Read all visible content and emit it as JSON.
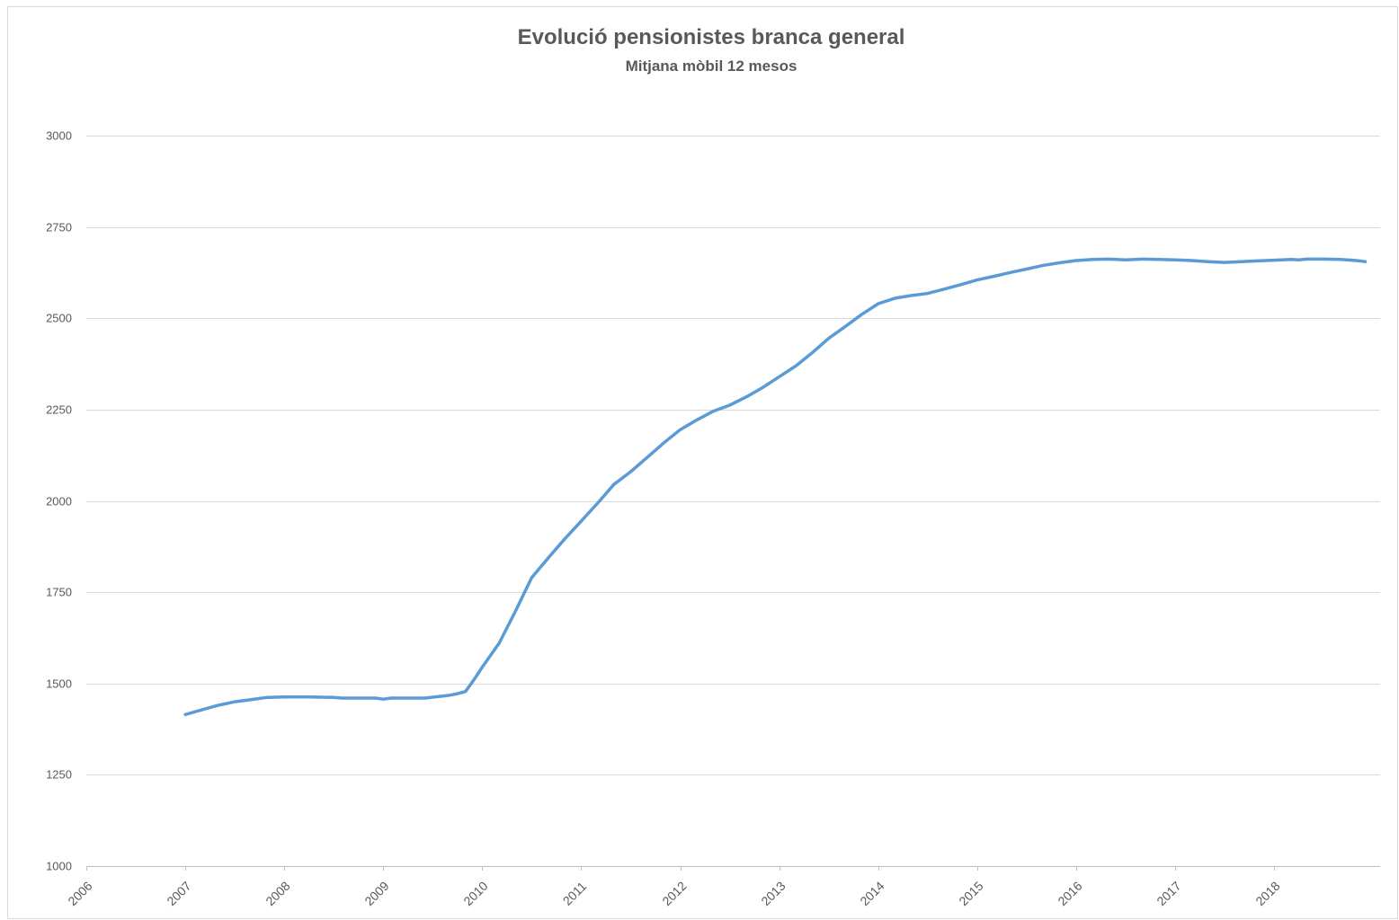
{
  "chart_data": {
    "type": "line",
    "title": "Evolució pensionistes branca general",
    "subtitle": "Mitjana mòbil 12 mesos",
    "xlabel": "",
    "ylabel": "",
    "xlim": [
      2006,
      2019.07
    ],
    "ylim": [
      1000,
      3000
    ],
    "yticks": [
      1000,
      1250,
      1500,
      1750,
      2000,
      2250,
      2500,
      2750,
      3000
    ],
    "xticks": [
      "2006",
      "2007",
      "2008",
      "2009",
      "2010",
      "2011",
      "2012",
      "2013",
      "2014",
      "2015",
      "2016",
      "2017",
      "2018"
    ],
    "grid": true,
    "legend": "none",
    "colors": {
      "line": "#5b9bd5",
      "grid": "#d9d9d9",
      "text": "#595959"
    },
    "series": [
      {
        "x": [
          2007.0,
          2007.17,
          2007.33,
          2007.5,
          2007.67,
          2007.83,
          2008.0,
          2008.25,
          2008.5,
          2008.58,
          2008.75,
          2008.92,
          2009.0,
          2009.08,
          2009.25,
          2009.42,
          2009.58,
          2009.67,
          2009.75,
          2009.83,
          2009.92,
          2010.0,
          2010.17,
          2010.33,
          2010.5,
          2010.67,
          2010.83,
          2011.0,
          2011.17,
          2011.33,
          2011.5,
          2011.67,
          2011.83,
          2012.0,
          2012.17,
          2012.33,
          2012.5,
          2012.67,
          2012.83,
          2013.0,
          2013.17,
          2013.33,
          2013.5,
          2013.67,
          2013.83,
          2014.0,
          2014.17,
          2014.33,
          2014.5,
          2014.67,
          2014.83,
          2015.0,
          2015.17,
          2015.33,
          2015.5,
          2015.67,
          2015.83,
          2016.0,
          2016.17,
          2016.33,
          2016.5,
          2016.67,
          2016.83,
          2017.0,
          2017.17,
          2017.33,
          2017.5,
          2017.67,
          2017.83,
          2018.0,
          2018.17,
          2018.25,
          2018.33,
          2018.5,
          2018.67,
          2018.83,
          2018.92
        ],
        "values": [
          1415,
          1428,
          1440,
          1450,
          1456,
          1462,
          1463,
          1463,
          1462,
          1460,
          1460,
          1460,
          1457,
          1460,
          1460,
          1460,
          1465,
          1468,
          1472,
          1478,
          1512,
          1545,
          1610,
          1695,
          1790,
          1845,
          1895,
          1945,
          1995,
          2045,
          2080,
          2120,
          2158,
          2195,
          2222,
          2245,
          2262,
          2285,
          2310,
          2340,
          2370,
          2405,
          2445,
          2478,
          2510,
          2540,
          2555,
          2562,
          2568,
          2580,
          2592,
          2605,
          2615,
          2625,
          2635,
          2645,
          2652,
          2658,
          2661,
          2662,
          2660,
          2662,
          2661,
          2660,
          2658,
          2655,
          2653,
          2655,
          2657,
          2659,
          2661,
          2660,
          2662,
          2662,
          2661,
          2658,
          2655
        ]
      }
    ]
  }
}
